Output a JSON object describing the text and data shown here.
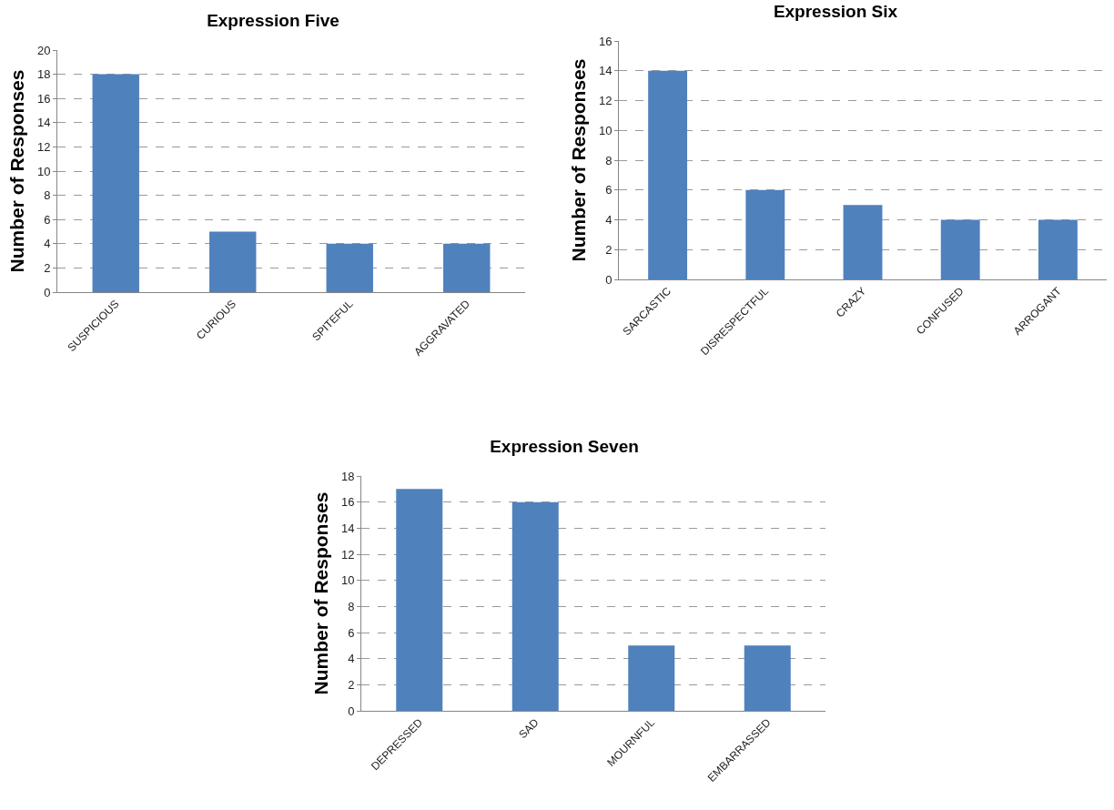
{
  "chart_data": [
    {
      "type": "bar",
      "title": "Expression Five",
      "ylabel": "Number of Responses",
      "categories": [
        "SUSPICIOUS",
        "CURIOUS",
        "SPITEFUL",
        "AGGRAVATED"
      ],
      "values": [
        18,
        5,
        4,
        4
      ],
      "color": "#4f81bd",
      "ylim": [
        0,
        20
      ],
      "yticks": [
        0,
        2,
        4,
        6,
        8,
        10,
        12,
        14,
        16,
        18,
        20
      ],
      "grid": "y"
    },
    {
      "type": "bar",
      "title": "Expression Six",
      "ylabel": "Number of Responses",
      "categories": [
        "SARCASTIC",
        "DISRESPECTFUL",
        "CRAZY",
        "CONFUSED",
        "ARROGANT"
      ],
      "values": [
        14,
        6,
        5,
        4,
        4
      ],
      "color": "#4f81bd",
      "ylim": [
        0,
        16
      ],
      "yticks": [
        0,
        2,
        4,
        6,
        8,
        10,
        12,
        14,
        16
      ],
      "grid": "y"
    },
    {
      "type": "bar",
      "title": "Expression Seven",
      "ylabel": "Number of Responses",
      "categories": [
        "DEPRESSED",
        "SAD",
        "MOURNFUL",
        "EMBARRASSED"
      ],
      "values": [
        17,
        16,
        5,
        5
      ],
      "color": "#4f81bd",
      "ylim": [
        0,
        18
      ],
      "yticks": [
        0,
        2,
        4,
        6,
        8,
        10,
        12,
        14,
        16,
        18
      ],
      "grid": "y"
    }
  ]
}
